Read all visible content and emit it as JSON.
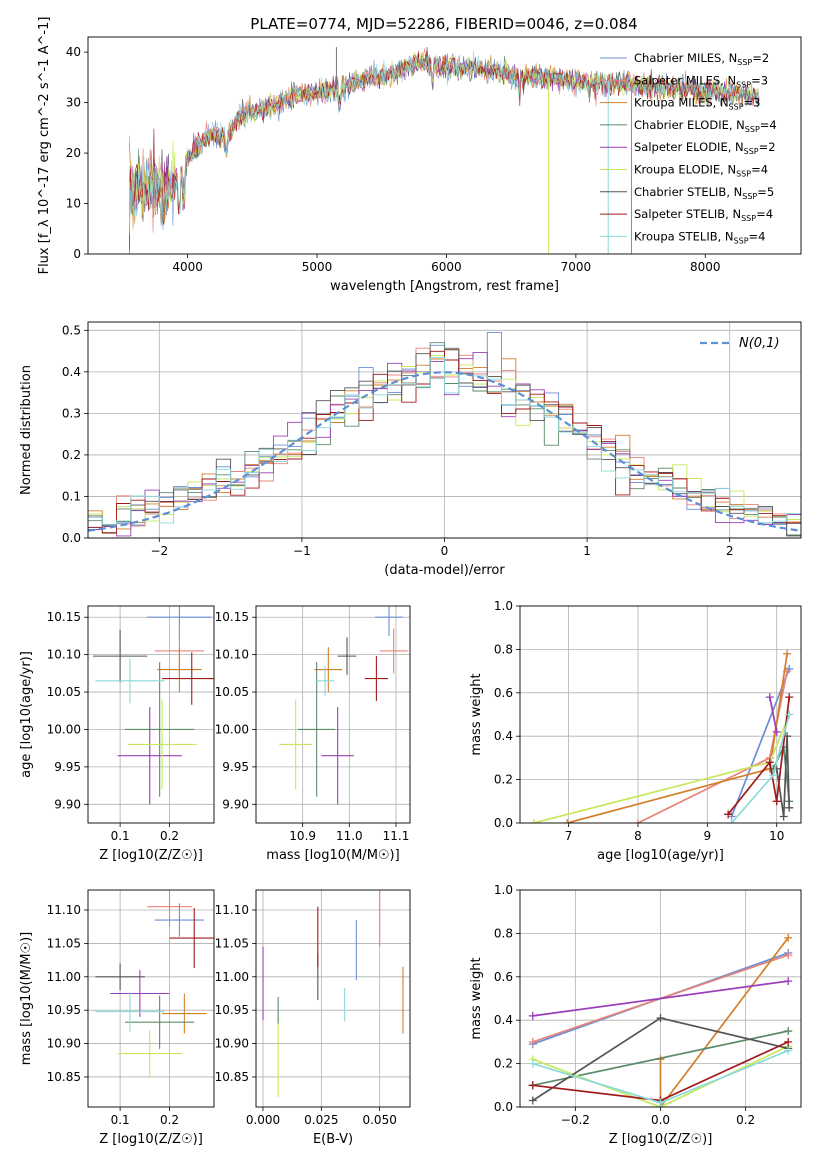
{
  "title": "PLATE=0774, MJD=52286, FIBERID=0046, z=0.084",
  "legend_labels": [
    "Chabrier MILES, N_SSP=2",
    "Salpeter MILES, N_SSP=3",
    "Kroupa MILES, N_SSP=3",
    "Chabrier ELODIE, N_SSP=4",
    "Salpeter ELODIE, N_SSP=2",
    "Kroupa ELODIE, N_SSP=4",
    "Chabrier STELIB, N_SSP=5",
    "Salpeter STELIB, N_SSP=4",
    "Kroupa STELIB, N_SSP=4"
  ],
  "colors": [
    "#6b8fd6",
    "#e8837a",
    "#d37f2a",
    "#5b8a6a",
    "#9b3fb8",
    "#c7e85e",
    "#555555",
    "#a11a1a",
    "#8ad9d9"
  ],
  "chart_data": [
    {
      "id": "spectrum",
      "type": "line",
      "xlabel": "wavelength [Angstrom, rest frame]",
      "ylabel": "Flux [f_λ 10^-17 erg cm^-2 s^-1 A^-1]",
      "xlim": [
        3230,
        8740
      ],
      "ylim": [
        0,
        43
      ],
      "xticks": [
        4000,
        5000,
        6000,
        7000,
        8000
      ],
      "yticks": [
        0,
        10,
        20,
        30,
        40
      ],
      "continuum": {
        "x": [
          3550,
          3700,
          3850,
          3950,
          4000,
          4100,
          4200,
          4300,
          4400,
          4600,
          4800,
          5000,
          5200,
          5400,
          5600,
          5800,
          6000,
          6200,
          6400,
          6600,
          6800,
          7000,
          7200,
          7400,
          7600,
          7800,
          8000,
          8200,
          8400
        ],
        "y": [
          12,
          14,
          13,
          16,
          19,
          22,
          24,
          23,
          27,
          29,
          31,
          32,
          33,
          35,
          36,
          38,
          37,
          37,
          36,
          35,
          35,
          34,
          34,
          33.5,
          33,
          33,
          32,
          32,
          31
        ]
      },
      "spikes": [
        {
          "x": 5150,
          "y": 41
        },
        {
          "x": 5850,
          "y": 41
        },
        {
          "x": 6790,
          "y": 0
        },
        {
          "x": 7250,
          "y": 0
        },
        {
          "x": 7430,
          "y": 0
        }
      ]
    },
    {
      "id": "residuals",
      "type": "line",
      "xlabel": "(data-model)/error",
      "ylabel": "Normed distribution",
      "xlim": [
        -2.5,
        2.5
      ],
      "ylim": [
        0,
        0.52
      ],
      "xticks": [
        -2,
        -1,
        0,
        1,
        2
      ],
      "yticks": [
        0.0,
        0.1,
        0.2,
        0.3,
        0.4,
        0.5
      ],
      "legend": "N(0,1)"
    },
    {
      "id": "age_vs_Z",
      "type": "scatter",
      "xlabel": "Z [log10(Z/Z☉)]",
      "ylabel": "age  [log10(age/yr)]",
      "xlim": [
        0.035,
        0.29
      ],
      "ylim": [
        9.875,
        10.165
      ],
      "xticks": [
        0.1,
        0.2
      ],
      "yticks": [
        9.9,
        9.95,
        10.0,
        10.05,
        10.1,
        10.15
      ],
      "points": [
        {
          "x": 0.22,
          "y": 10.15,
          "ex": 0.065,
          "ey": 0.03,
          "c": 0
        },
        {
          "x": 0.22,
          "y": 10.105,
          "ex": 0.05,
          "ey": 0.035,
          "c": 1
        },
        {
          "x": 0.22,
          "y": 10.08,
          "ex": 0.045,
          "ey": 0.03,
          "c": 2
        },
        {
          "x": 0.18,
          "y": 10.0,
          "ex": 0.07,
          "ey": 0.09,
          "c": 3
        },
        {
          "x": 0.16,
          "y": 9.965,
          "ex": 0.065,
          "ey": 0.065,
          "c": 4
        },
        {
          "x": 0.185,
          "y": 9.98,
          "ex": 0.07,
          "ey": 0.06,
          "c": 5
        },
        {
          "x": 0.1,
          "y": 10.098,
          "ex": 0.055,
          "ey": 0.035,
          "c": 6
        },
        {
          "x": 0.245,
          "y": 10.068,
          "ex": 0.06,
          "ey": 0.035,
          "c": 7
        },
        {
          "x": 0.12,
          "y": 10.065,
          "ex": 0.07,
          "ey": 0.03,
          "c": 8
        }
      ]
    },
    {
      "id": "age_vs_mass",
      "type": "scatter",
      "xlabel": "mass [log10(M/M☉)]",
      "ylabel": "",
      "xlim": [
        10.8,
        11.13
      ],
      "ylim": [
        9.875,
        10.165
      ],
      "xticks": [
        10.9,
        11.0,
        11.1
      ],
      "yticks": [
        9.9,
        9.95,
        10.0,
        10.05,
        10.1,
        10.15
      ],
      "points": [
        {
          "x": 11.085,
          "y": 10.15,
          "ex": 0.03,
          "ey": 0.025,
          "c": 0
        },
        {
          "x": 11.095,
          "y": 10.105,
          "ex": 0.03,
          "ey": 0.03,
          "c": 1
        },
        {
          "x": 10.955,
          "y": 10.08,
          "ex": 0.03,
          "ey": 0.03,
          "c": 2
        },
        {
          "x": 10.93,
          "y": 10.0,
          "ex": 0.04,
          "ey": 0.09,
          "c": 3
        },
        {
          "x": 10.975,
          "y": 9.965,
          "ex": 0.035,
          "ey": 0.065,
          "c": 4
        },
        {
          "x": 10.885,
          "y": 9.98,
          "ex": 0.035,
          "ey": 0.06,
          "c": 5
        },
        {
          "x": 10.995,
          "y": 10.098,
          "ex": 0.02,
          "ey": 0.025,
          "c": 6
        },
        {
          "x": 11.058,
          "y": 10.068,
          "ex": 0.025,
          "ey": 0.03,
          "c": 7
        },
        {
          "x": 10.948,
          "y": 10.065,
          "ex": 0.02,
          "ey": 0.02,
          "c": 8
        }
      ]
    },
    {
      "id": "weight_vs_age",
      "type": "line",
      "xlabel": "age  [log10(age/yr)]",
      "ylabel": "mass weight",
      "xlim": [
        6.3,
        10.35
      ],
      "ylim": [
        0,
        1.0
      ],
      "xticks": [
        7,
        8,
        9,
        10
      ],
      "yticks": [
        0.0,
        0.2,
        0.4,
        0.6,
        0.8,
        1.0
      ],
      "series": [
        {
          "c": 0,
          "x": [
            9.35,
            10.18
          ],
          "y": [
            0.03,
            0.71
          ]
        },
        {
          "c": 1,
          "x": [
            8.0,
            9.9,
            10.15
          ],
          "y": [
            0.0,
            0.3,
            0.7
          ]
        },
        {
          "c": 2,
          "x": [
            6.98,
            9.9,
            10.15
          ],
          "y": [
            0.0,
            0.25,
            0.78
          ]
        },
        {
          "c": 3,
          "x": [
            9.95,
            10.1,
            10.18
          ],
          "y": [
            0.25,
            0.35,
            0.1
          ]
        },
        {
          "c": 4,
          "x": [
            9.9,
            10.0
          ],
          "y": [
            0.58,
            0.42
          ]
        },
        {
          "c": 5,
          "x": [
            6.5,
            9.9,
            10.18
          ],
          "y": [
            0.0,
            0.28,
            0.5
          ]
        },
        {
          "c": 6,
          "x": [
            10.0,
            10.1,
            10.15,
            10.18
          ],
          "y": [
            0.25,
            0.03,
            0.4,
            0.07
          ]
        },
        {
          "c": 7,
          "x": [
            9.3,
            9.9,
            10.0,
            10.18
          ],
          "y": [
            0.04,
            0.28,
            0.1,
            0.58
          ]
        },
        {
          "c": 8,
          "x": [
            9.35,
            9.95,
            10.18
          ],
          "y": [
            0.0,
            0.22,
            0.5
          ]
        }
      ]
    },
    {
      "id": "mass_vs_Z",
      "type": "scatter",
      "xlabel": "Z [log10(Z/Z☉)]",
      "ylabel": "mass [log10(M/M☉)]",
      "xlim": [
        0.035,
        0.29
      ],
      "ylim": [
        10.805,
        11.13
      ],
      "xticks": [
        0.1,
        0.2
      ],
      "yticks": [
        10.85,
        10.9,
        10.95,
        11.0,
        11.05,
        11.1
      ],
      "points": [
        {
          "x": 0.22,
          "y": 11.085,
          "ex": 0.05,
          "ey": 0.025,
          "c": 0
        },
        {
          "x": 0.2,
          "y": 11.105,
          "ex": 0.045,
          "ey": 0.03,
          "c": 1
        },
        {
          "x": 0.23,
          "y": 10.945,
          "ex": 0.045,
          "ey": 0.03,
          "c": 2
        },
        {
          "x": 0.18,
          "y": 10.932,
          "ex": 0.07,
          "ey": 0.04,
          "c": 3
        },
        {
          "x": 0.14,
          "y": 10.975,
          "ex": 0.06,
          "ey": 0.035,
          "c": 4
        },
        {
          "x": 0.16,
          "y": 10.885,
          "ex": 0.065,
          "ey": 0.035,
          "c": 5
        },
        {
          "x": 0.1,
          "y": 11.0,
          "ex": 0.05,
          "ey": 0.02,
          "c": 6
        },
        {
          "x": 0.25,
          "y": 11.058,
          "ex": 0.05,
          "ey": 0.045,
          "c": 7
        },
        {
          "x": 0.12,
          "y": 10.948,
          "ex": 0.07,
          "ey": 0.03,
          "c": 8
        }
      ]
    },
    {
      "id": "mass_vs_ebv",
      "type": "scatter",
      "xlabel": "E(B-V)",
      "ylabel": "",
      "xlim": [
        -0.003,
        0.063
      ],
      "ylim": [
        10.805,
        11.13
      ],
      "xticks": [
        0.0,
        0.025,
        0.05
      ],
      "yticks": [
        10.85,
        10.9,
        10.95,
        11.0,
        11.05,
        11.1
      ],
      "points": [
        {
          "x": 0.04,
          "y": 11.04,
          "ex": 0,
          "ey": 0.045,
          "c": 0
        },
        {
          "x": 0.05,
          "y": 11.09,
          "ex": 0,
          "ey": 0.045,
          "c": 1
        },
        {
          "x": 0.06,
          "y": 10.965,
          "ex": 0,
          "ey": 0.05,
          "c": 2
        },
        {
          "x": 0.0235,
          "y": 11.0,
          "ex": 0,
          "ey": 0.035,
          "c": 6
        },
        {
          "x": 0.0235,
          "y": 11.06,
          "ex": 0,
          "ey": 0.045,
          "c": 7
        },
        {
          "x": 0.0,
          "y": 10.99,
          "ex": 0,
          "ey": 0.055,
          "c": 4
        },
        {
          "x": 0.0065,
          "y": 10.88,
          "ex": 0,
          "ey": 0.06,
          "c": 5
        },
        {
          "x": 0.0065,
          "y": 10.95,
          "ex": 0,
          "ey": 0.02,
          "c": 3
        },
        {
          "x": 0.035,
          "y": 10.958,
          "ex": 0,
          "ey": 0.025,
          "c": 8
        }
      ]
    },
    {
      "id": "weight_vs_Z",
      "type": "line",
      "xlabel": "Z [log10(Z/Z☉)]",
      "ylabel": "mass weight",
      "xlim": [
        -0.33,
        0.33
      ],
      "ylim": [
        0,
        1.0
      ],
      "xticks": [
        -0.2,
        0.0,
        0.2
      ],
      "yticks": [
        0.0,
        0.2,
        0.4,
        0.6,
        0.8,
        1.0
      ],
      "series": [
        {
          "c": 0,
          "x": [
            -0.3,
            0.3
          ],
          "y": [
            0.29,
            0.71
          ]
        },
        {
          "c": 1,
          "x": [
            -0.3,
            0.3
          ],
          "y": [
            0.3,
            0.7
          ]
        },
        {
          "c": 2,
          "x": [
            0.0,
            0.0,
            0.3
          ],
          "y": [
            0.22,
            0.0,
            0.78
          ]
        },
        {
          "c": 3,
          "x": [
            -0.3,
            0.3
          ],
          "y": [
            0.1,
            0.35
          ]
        },
        {
          "c": 4,
          "x": [
            -0.3,
            0.3
          ],
          "y": [
            0.42,
            0.58
          ]
        },
        {
          "c": 5,
          "x": [
            -0.3,
            0.0,
            0.3
          ],
          "y": [
            0.22,
            0.0,
            0.28
          ]
        },
        {
          "c": 6,
          "x": [
            -0.3,
            0.0,
            0.3
          ],
          "y": [
            0.03,
            0.41,
            0.27
          ]
        },
        {
          "c": 7,
          "x": [
            -0.3,
            0.0,
            0.3
          ],
          "y": [
            0.1,
            0.03,
            0.3
          ]
        },
        {
          "c": 8,
          "x": [
            -0.3,
            0.0,
            0.3
          ],
          "y": [
            0.2,
            0.02,
            0.26
          ]
        }
      ]
    }
  ]
}
